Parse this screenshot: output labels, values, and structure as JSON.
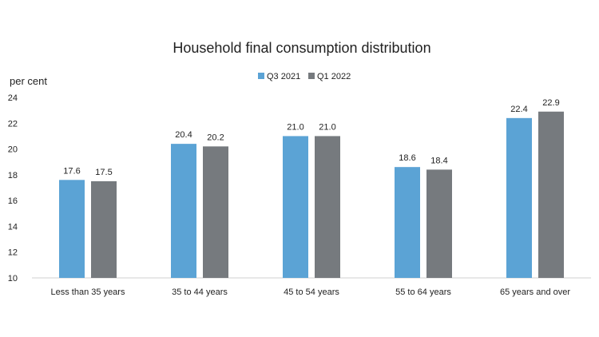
{
  "chart_data": {
    "type": "bar",
    "title": "Household final consumption distribution",
    "ylabel": "per cent",
    "xlabel": "",
    "ylim": [
      10,
      24
    ],
    "yticks": [
      10,
      12,
      14,
      16,
      18,
      20,
      22,
      24
    ],
    "grid": false,
    "legend_position": "top-center",
    "categories": [
      "Less than 35 years",
      "35 to 44 years",
      "45 to 54 years",
      "55 to 64 years",
      "65 years and over"
    ],
    "series": [
      {
        "name": "Q3 2021",
        "color": "#5ba3d5",
        "values": [
          17.6,
          20.4,
          21.0,
          18.6,
          22.4
        ],
        "labels": [
          "17.6",
          "20.4",
          "21.0",
          "18.6",
          "22.4"
        ]
      },
      {
        "name": "Q1 2022",
        "color": "#767a7e",
        "values": [
          17.5,
          20.2,
          21.0,
          18.4,
          22.9
        ],
        "labels": [
          "17.5",
          "20.2",
          "21.0",
          "18.4",
          "22.9"
        ]
      }
    ]
  }
}
